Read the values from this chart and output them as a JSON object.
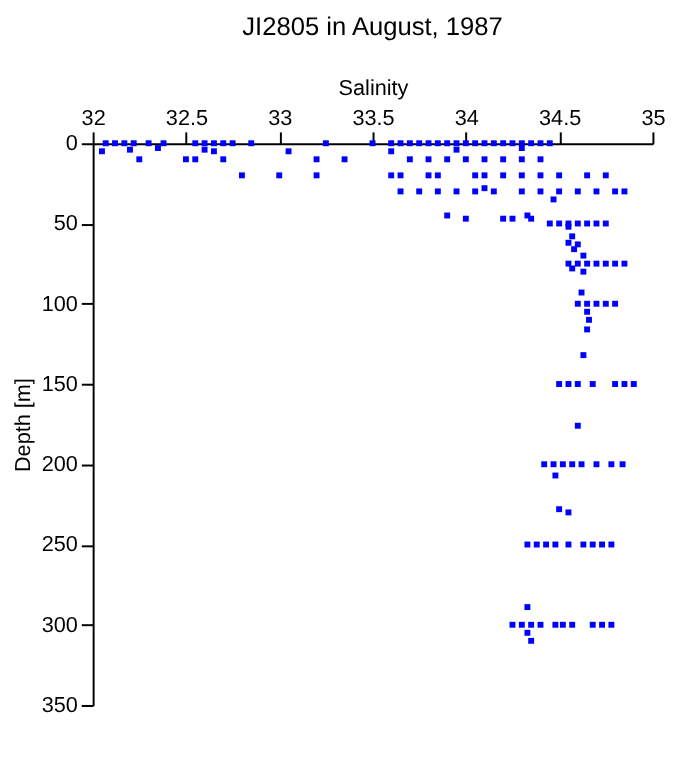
{
  "chart_data": {
    "type": "scatter",
    "title": "JI2805 in August, 1987",
    "xlabel": "Salinity",
    "ylabel": "Depth [m]",
    "xlim": [
      32,
      35
    ],
    "xticks": [
      32,
      32.5,
      33,
      33.5,
      34,
      34.5,
      35
    ],
    "ylim": [
      350,
      0
    ],
    "yticks": [
      0,
      50,
      100,
      150,
      200,
      250,
      300,
      350
    ],
    "grid": false,
    "legend": false,
    "marker": "square",
    "series": [
      {
        "color": "#0000ff",
        "x": [
          32.07,
          32.12,
          32.17,
          32.22,
          32.3,
          32.38,
          32.55,
          32.6,
          32.65,
          32.7,
          32.75,
          32.85,
          33.25,
          33.5,
          33.6,
          33.65,
          33.7,
          33.75,
          33.8,
          33.85,
          33.9,
          33.95,
          34.0,
          34.05,
          34.1,
          34.15,
          34.2,
          34.25,
          34.3,
          34.35,
          34.4,
          34.45,
          32.05,
          32.2,
          32.35,
          32.6,
          32.65,
          33.05,
          33.6,
          33.95,
          34.3,
          32.25,
          32.5,
          32.55,
          32.7,
          33.2,
          33.35,
          33.7,
          33.8,
          33.9,
          34.0,
          34.1,
          34.2,
          34.3,
          34.4,
          32.8,
          33.0,
          33.2,
          33.6,
          33.65,
          33.8,
          33.85,
          34.05,
          34.1,
          34.2,
          34.3,
          34.4,
          34.5,
          34.65,
          34.75,
          33.65,
          33.75,
          33.85,
          33.95,
          34.05,
          34.15,
          34.3,
          34.4,
          34.5,
          34.6,
          34.7,
          34.8,
          34.85,
          34.1,
          34.47,
          33.9,
          34.33,
          34.0,
          34.2,
          34.25,
          34.35,
          34.45,
          34.5,
          34.55,
          34.6,
          34.65,
          34.7,
          34.75,
          34.55,
          34.57,
          34.55,
          34.6,
          34.58,
          34.63,
          34.55,
          34.6,
          34.65,
          34.7,
          34.75,
          34.8,
          34.85,
          34.57,
          34.63,
          34.62,
          34.6,
          34.65,
          34.7,
          34.75,
          34.8,
          34.65,
          34.66,
          34.65,
          34.63,
          34.5,
          34.55,
          34.6,
          34.68,
          34.8,
          34.85,
          34.9,
          34.6,
          34.42,
          34.47,
          34.52,
          34.57,
          34.62,
          34.7,
          34.78,
          34.84,
          34.48,
          34.5,
          34.55,
          34.33,
          34.38,
          34.43,
          34.48,
          34.55,
          34.63,
          34.68,
          34.73,
          34.78,
          34.33,
          34.25,
          34.3,
          34.35,
          34.4,
          34.48,
          34.52,
          34.57,
          34.68,
          34.73,
          34.78,
          34.33,
          34.35
        ],
        "values": [
          0,
          0,
          0,
          0,
          0,
          0,
          0,
          0,
          0,
          0,
          0,
          0,
          0,
          0,
          0,
          0,
          0,
          0,
          0,
          0,
          0,
          0,
          0,
          0,
          0,
          0,
          0,
          0,
          0,
          0,
          0,
          0,
          5,
          4,
          3,
          4,
          5,
          5,
          5,
          4,
          3,
          10,
          10,
          10,
          10,
          10,
          10,
          10,
          10,
          10,
          10,
          10,
          10,
          10,
          10,
          20,
          20,
          20,
          20,
          20,
          20,
          20,
          20,
          20,
          20,
          20,
          20,
          20,
          20,
          20,
          30,
          30,
          30,
          30,
          30,
          30,
          30,
          30,
          30,
          30,
          30,
          30,
          30,
          28,
          35,
          45,
          45,
          47,
          47,
          47,
          47,
          50,
          50,
          50,
          50,
          50,
          50,
          50,
          52,
          58,
          62,
          63,
          66,
          70,
          75,
          75,
          75,
          75,
          75,
          75,
          75,
          78,
          80,
          93,
          100,
          100,
          100,
          100,
          100,
          105,
          110,
          116,
          132,
          150,
          150,
          150,
          150,
          150,
          150,
          150,
          176,
          200,
          200,
          200,
          200,
          200,
          200,
          200,
          200,
          207,
          228,
          230,
          250,
          250,
          250,
          250,
          250,
          250,
          250,
          250,
          250,
          289,
          300,
          300,
          300,
          300,
          300,
          300,
          300,
          300,
          300,
          300,
          305,
          310
        ]
      }
    ]
  }
}
